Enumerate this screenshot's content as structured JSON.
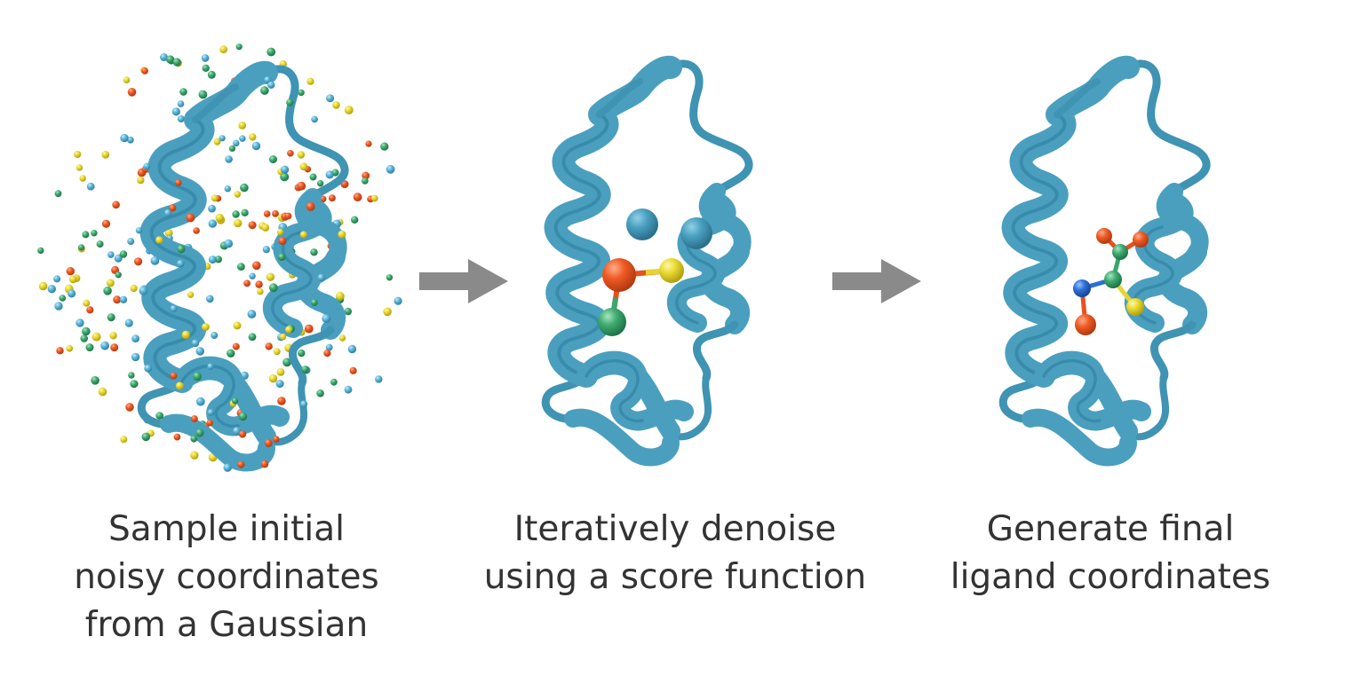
{
  "panels": [
    {
      "id": "sample",
      "caption": [
        "Sample initial",
        "noisy coordinates",
        "from a Gaussian"
      ]
    },
    {
      "id": "denoise",
      "caption": [
        "Iteratively denoise",
        "using a score function"
      ]
    },
    {
      "id": "final",
      "caption": [
        "Generate final",
        "ligand coordinates"
      ]
    }
  ],
  "colors": {
    "protein": "#4a9fbf",
    "protein_dark": "#2f7f9f",
    "arrow": "#8a8a8a",
    "atom_red": "#e8501e",
    "atom_yellow": "#e6d530",
    "atom_green": "#3aa66a",
    "atom_cyan": "#5bb5d8",
    "atom_blue": "#2d6fd6",
    "text": "#333333"
  },
  "icons": [
    "protein-ribbon-icon",
    "arrow-right-icon",
    "atom-icon",
    "bond-icon"
  ]
}
